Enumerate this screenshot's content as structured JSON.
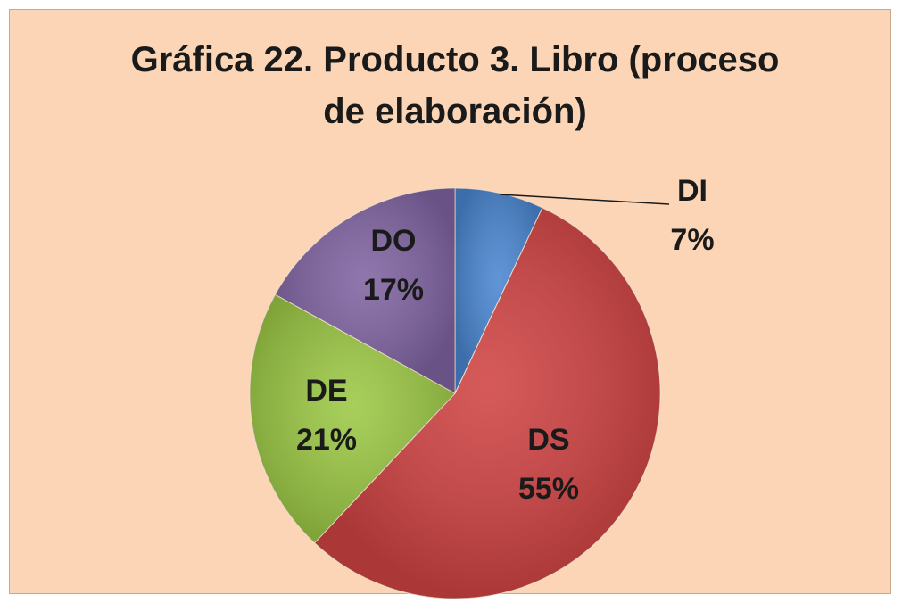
{
  "chart_data": {
    "type": "pie",
    "title": "Gráfica 22. Producto 3. Libro (proceso de elaboración)",
    "categories": [
      "DI",
      "DS",
      "DE",
      "DO"
    ],
    "values": [
      7,
      55,
      21,
      17
    ],
    "value_labels": [
      "7%",
      "55%",
      "21%",
      "17%"
    ],
    "colors": [
      "#4a86d0",
      "#d04343",
      "#9cc845",
      "#8064a2"
    ]
  }
}
